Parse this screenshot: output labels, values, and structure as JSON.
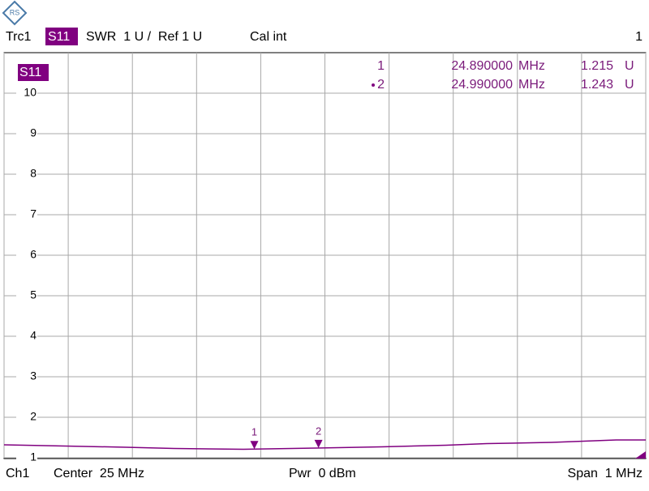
{
  "chart_data": {
    "type": "line",
    "header": {
      "trace": "Trc1",
      "parameter": "S11",
      "format": "SWR  1 U /  Ref 1 U",
      "calibration": "Cal int",
      "window": "1"
    },
    "footer": {
      "channel": "Ch1",
      "center": "Center  25 MHz",
      "power": "Pwr  0 dBm",
      "span": "Span  1 MHz"
    },
    "xlim": [
      24.5,
      25.5
    ],
    "xticks": [
      24.5,
      24.6,
      24.7,
      24.8,
      24.9,
      25.0,
      25.1,
      25.2,
      25.3,
      25.4,
      25.5
    ],
    "ylim": [
      1,
      11
    ],
    "yticks": [
      1,
      2,
      3,
      4,
      5,
      6,
      7,
      8,
      9,
      10
    ],
    "grid": true,
    "series": [
      {
        "name": "S11",
        "color": "#800080",
        "x": [
          24.5,
          24.595,
          24.69,
          24.765,
          24.873,
          24.987,
          25.088,
          25.189,
          25.252,
          25.353,
          25.454,
          25.5
        ],
        "values": [
          1.32,
          1.29,
          1.26,
          1.23,
          1.21,
          1.24,
          1.27,
          1.31,
          1.35,
          1.38,
          1.44,
          1.44
        ]
      }
    ],
    "markers": [
      {
        "label": "1",
        "x": 24.89,
        "x_label": "24.890000",
        "x_unit": "MHz",
        "value": 1.215,
        "unit": "U",
        "active": false
      },
      {
        "label": "2",
        "x": 24.99,
        "x_label": "24.990000",
        "x_unit": "MHz",
        "value": 1.243,
        "unit": "U",
        "active": true
      }
    ]
  }
}
